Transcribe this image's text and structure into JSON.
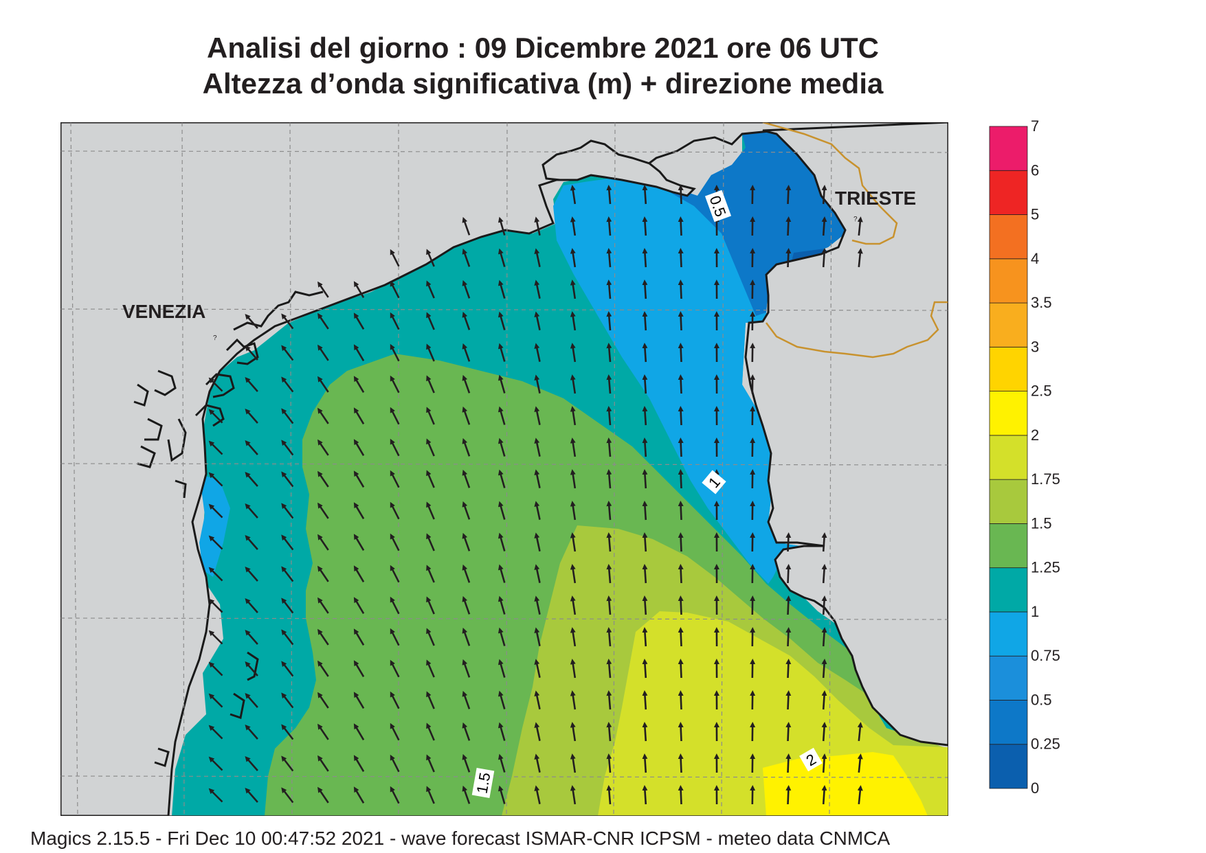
{
  "title": {
    "line1": "Analisi del giorno :  09 Dicembre  2021   ore 06 UTC",
    "line2": "Altezza d’onda significativa (m) + direzione media"
  },
  "places": {
    "venezia": "VENEZIA",
    "trieste": "TRIESTE"
  },
  "contour_labels": [
    "0.5",
    "1",
    "1.5",
    "2"
  ],
  "legend": {
    "ticks": [
      "0",
      "0.25",
      "0.5",
      "0.75",
      "1",
      "1.25",
      "1.5",
      "1.75",
      "2",
      "2.5",
      "3",
      "3.5",
      "4",
      "5",
      "6",
      "7"
    ],
    "colors": [
      "#0b5fae",
      "#0d78c8",
      "#1b8fdb",
      "#10a6e6",
      "#00a9a6",
      "#69b752",
      "#a8c93d",
      "#d4e02a",
      "#fff200",
      "#ffd400",
      "#f9ae1e",
      "#f7931e",
      "#f37021",
      "#ee2524",
      "#ec1c6a"
    ]
  },
  "colors": {
    "land": "#d1d3d4",
    "coast": "#1a1a1a",
    "border": "#c8922e",
    "grid": "#8c8c8c",
    "arrow": "#231f20"
  },
  "footer": "Magics 2.15.5 - Fri Dec 10 00:47:52 2021 - wave forecast  ISMAR-CNR  ICPSM - meteo data    CNMCA"
}
